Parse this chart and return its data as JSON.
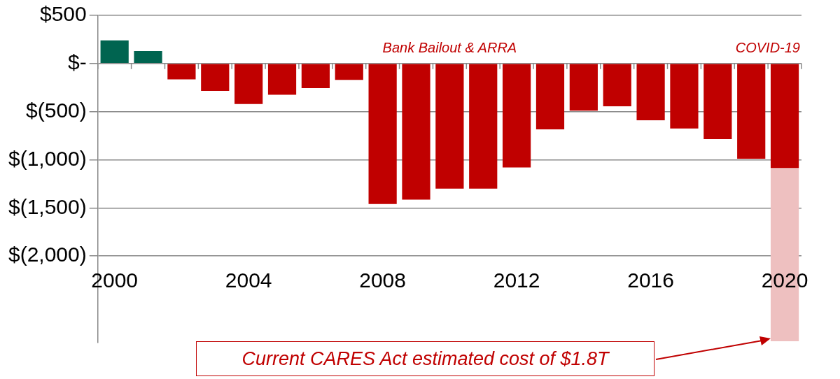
{
  "chart_data": {
    "type": "bar",
    "categories": [
      "2000",
      null,
      null,
      null,
      "2004",
      null,
      null,
      null,
      "2008",
      null,
      null,
      null,
      "2012",
      null,
      null,
      null,
      "2016",
      null,
      null,
      null,
      "2020"
    ],
    "stacked": true,
    "series": [
      {
        "values": [
          240,
          130,
          -165,
          -285,
          -420,
          -325,
          -255,
          -170,
          -1460,
          -1415,
          -1300,
          -1300,
          -1080,
          -685,
          -490,
          -445,
          -590,
          -675,
          -785,
          -990,
          -1085
        ],
        "colors": [
          "#006450",
          "#006450",
          "#c00000",
          "#c00000",
          "#c00000",
          "#c00000",
          "#c00000",
          "#c00000",
          "#c00000",
          "#c00000",
          "#c00000",
          "#c00000",
          "#c00000",
          "#c00000",
          "#c00000",
          "#c00000",
          "#c00000",
          "#c00000",
          "#c00000",
          "#c00000",
          "#c00000"
        ]
      },
      {
        "values": [
          null,
          null,
          null,
          null,
          null,
          null,
          null,
          null,
          null,
          null,
          null,
          null,
          null,
          null,
          null,
          null,
          null,
          null,
          null,
          null,
          -1800
        ],
        "color": "#eec0c0"
      }
    ],
    "ylim": [
      -2900,
      500
    ],
    "yticks": [
      {
        "value": 500,
        "label": "$500"
      },
      {
        "value": 0,
        "label": "$-"
      },
      {
        "value": -500,
        "label": "$(500)"
      },
      {
        "value": -1000,
        "label": "$(1,000)"
      },
      {
        "value": -1500,
        "label": "$(1,500)"
      },
      {
        "value": -2000,
        "label": "$(2,000)"
      }
    ],
    "grid": "y",
    "legend": false,
    "annotations": [
      "Bank Bailout & ARRA",
      "COVID-19",
      "Current CARES Act estimated cost of $1.8T"
    ]
  }
}
